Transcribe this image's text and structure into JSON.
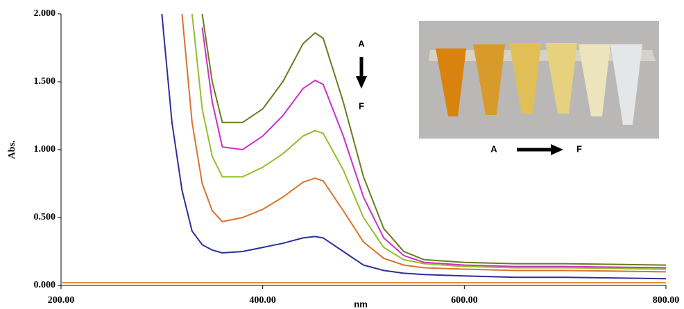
{
  "chart_data": {
    "type": "line",
    "x_label": "nm",
    "y_label": "Abs.",
    "xlim": [
      200,
      800
    ],
    "ylim": [
      0,
      2
    ],
    "xticks": [
      {
        "value": 200,
        "label": "200.00"
      },
      {
        "value": 400,
        "label": "400.00"
      },
      {
        "value": 600,
        "label": "600.00"
      },
      {
        "value": 800,
        "label": "800.00"
      }
    ],
    "yticks": [
      {
        "value": 0,
        "label": "0.000"
      },
      {
        "value": 0.5,
        "label": "0.500"
      },
      {
        "value": 1,
        "label": "1.000"
      },
      {
        "value": 1.5,
        "label": "1.500"
      },
      {
        "value": 2,
        "label": "2.000"
      }
    ],
    "x": [
      300,
      310,
      320,
      330,
      340,
      350,
      360,
      380,
      400,
      420,
      440,
      452,
      460,
      480,
      500,
      520,
      540,
      560,
      600,
      650,
      700,
      800
    ],
    "series": [
      {
        "color": "#6b7a1e",
        "values": [
          null,
          null,
          null,
          null,
          2.0,
          1.5,
          1.2,
          1.2,
          1.3,
          1.5,
          1.78,
          1.86,
          1.82,
          1.35,
          0.8,
          0.42,
          0.25,
          0.19,
          0.17,
          0.16,
          0.16,
          0.15
        ]
      },
      {
        "color": "#cc2fc8",
        "values": [
          null,
          null,
          null,
          null,
          1.9,
          1.35,
          1.02,
          1.0,
          1.1,
          1.25,
          1.45,
          1.51,
          1.48,
          1.1,
          0.65,
          0.35,
          0.22,
          0.17,
          0.15,
          0.14,
          0.14,
          0.13
        ]
      },
      {
        "color": "#93be2e",
        "values": [
          null,
          null,
          null,
          2.0,
          1.3,
          0.95,
          0.8,
          0.8,
          0.87,
          0.97,
          1.1,
          1.14,
          1.12,
          0.85,
          0.5,
          0.28,
          0.19,
          0.16,
          0.14,
          0.13,
          0.13,
          0.12
        ]
      },
      {
        "color": "#d8742c",
        "values": [
          null,
          null,
          2.0,
          1.2,
          0.75,
          0.55,
          0.47,
          0.5,
          0.56,
          0.65,
          0.76,
          0.79,
          0.77,
          0.55,
          0.32,
          0.2,
          0.15,
          0.13,
          0.12,
          0.11,
          0.11,
          0.1
        ]
      },
      {
        "color": "#2a2f9c",
        "values": [
          2.0,
          1.2,
          0.7,
          0.4,
          0.3,
          0.26,
          0.24,
          0.25,
          0.28,
          0.31,
          0.35,
          0.36,
          0.35,
          0.25,
          0.15,
          0.11,
          0.09,
          0.08,
          0.07,
          0.06,
          0.06,
          0.05
        ]
      },
      {
        "color": "#e8882e",
        "x": [
          200,
          800
        ],
        "values": [
          0.02,
          0.02
        ]
      }
    ],
    "annotations": [
      "A",
      "F",
      "A",
      "F"
    ]
  }
}
